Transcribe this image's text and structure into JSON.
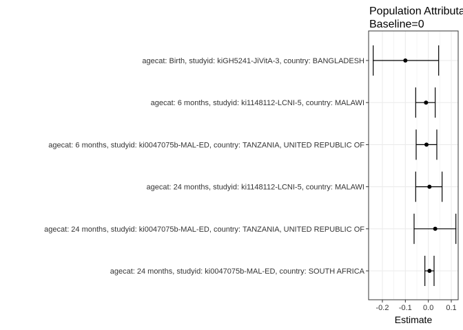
{
  "chart_data": {
    "type": "forest",
    "title_lines": [
      "Population Attributable",
      "Baseline=0"
    ],
    "xlabel": "Estimate",
    "ylabel": "",
    "xlim": [
      -0.26,
      0.13
    ],
    "xticks": [
      "-0.2",
      "-0.1",
      "0.0",
      "0.1"
    ],
    "xtick_values": [
      -0.2,
      -0.1,
      0.0,
      0.1
    ],
    "grid": true,
    "rows": [
      {
        "label": "agecat: Birth, studyid: kiGH5241-JiVitA-3, country: BANGLADESH",
        "estimate": -0.1,
        "lower": -0.24,
        "upper": 0.045
      },
      {
        "label": "agecat: 6 months, studyid: ki1148112-LCNI-5, country: MALAWI",
        "estimate": -0.01,
        "lower": -0.055,
        "upper": 0.03
      },
      {
        "label": "agecat: 6 months, studyid: ki0047075b-MAL-ED, country: TANZANIA, UNITED REPUBLIC OF",
        "estimate": -0.008,
        "lower": -0.053,
        "upper": 0.037
      },
      {
        "label": "agecat: 24 months, studyid: ki1148112-LCNI-5, country: MALAWI",
        "estimate": 0.005,
        "lower": -0.055,
        "upper": 0.06
      },
      {
        "label": "agecat: 24 months, studyid: ki0047075b-MAL-ED, country: TANZANIA, UNITED REPUBLIC OF",
        "estimate": 0.03,
        "lower": -0.062,
        "upper": 0.12
      },
      {
        "label": "agecat: 24 months, studyid: ki0047075b-MAL-ED, country: SOUTH AFRICA",
        "estimate": 0.005,
        "lower": -0.015,
        "upper": 0.025
      }
    ]
  },
  "colors": {
    "background": "#ffffff",
    "grid": "#ebebeb",
    "panel_border": "#333333",
    "marks": "#000000",
    "text": "#333333"
  }
}
